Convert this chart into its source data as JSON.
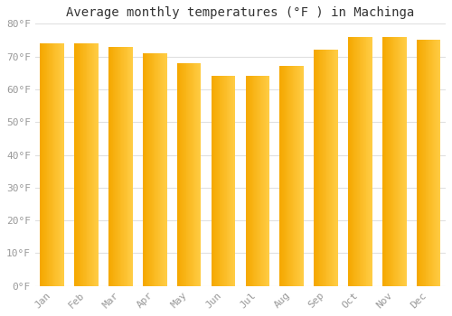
{
  "title": "Average monthly temperatures (°F ) in Machinga",
  "months": [
    "Jan",
    "Feb",
    "Mar",
    "Apr",
    "May",
    "Jun",
    "Jul",
    "Aug",
    "Sep",
    "Oct",
    "Nov",
    "Dec"
  ],
  "values": [
    74,
    74,
    73,
    71,
    68,
    64,
    64,
    67,
    72,
    76,
    76,
    75
  ],
  "bar_color_left": "#F5A800",
  "bar_color_right": "#FFCC44",
  "background_color": "#FFFFFF",
  "grid_color": "#E0E0E0",
  "ylim": [
    0,
    80
  ],
  "yticks": [
    0,
    10,
    20,
    30,
    40,
    50,
    60,
    70,
    80
  ],
  "ytick_labels": [
    "0°F",
    "10°F",
    "20°F",
    "30°F",
    "40°F",
    "50°F",
    "60°F",
    "70°F",
    "80°F"
  ],
  "title_fontsize": 10,
  "tick_fontsize": 8,
  "tick_color": "#999999",
  "font_family": "monospace"
}
